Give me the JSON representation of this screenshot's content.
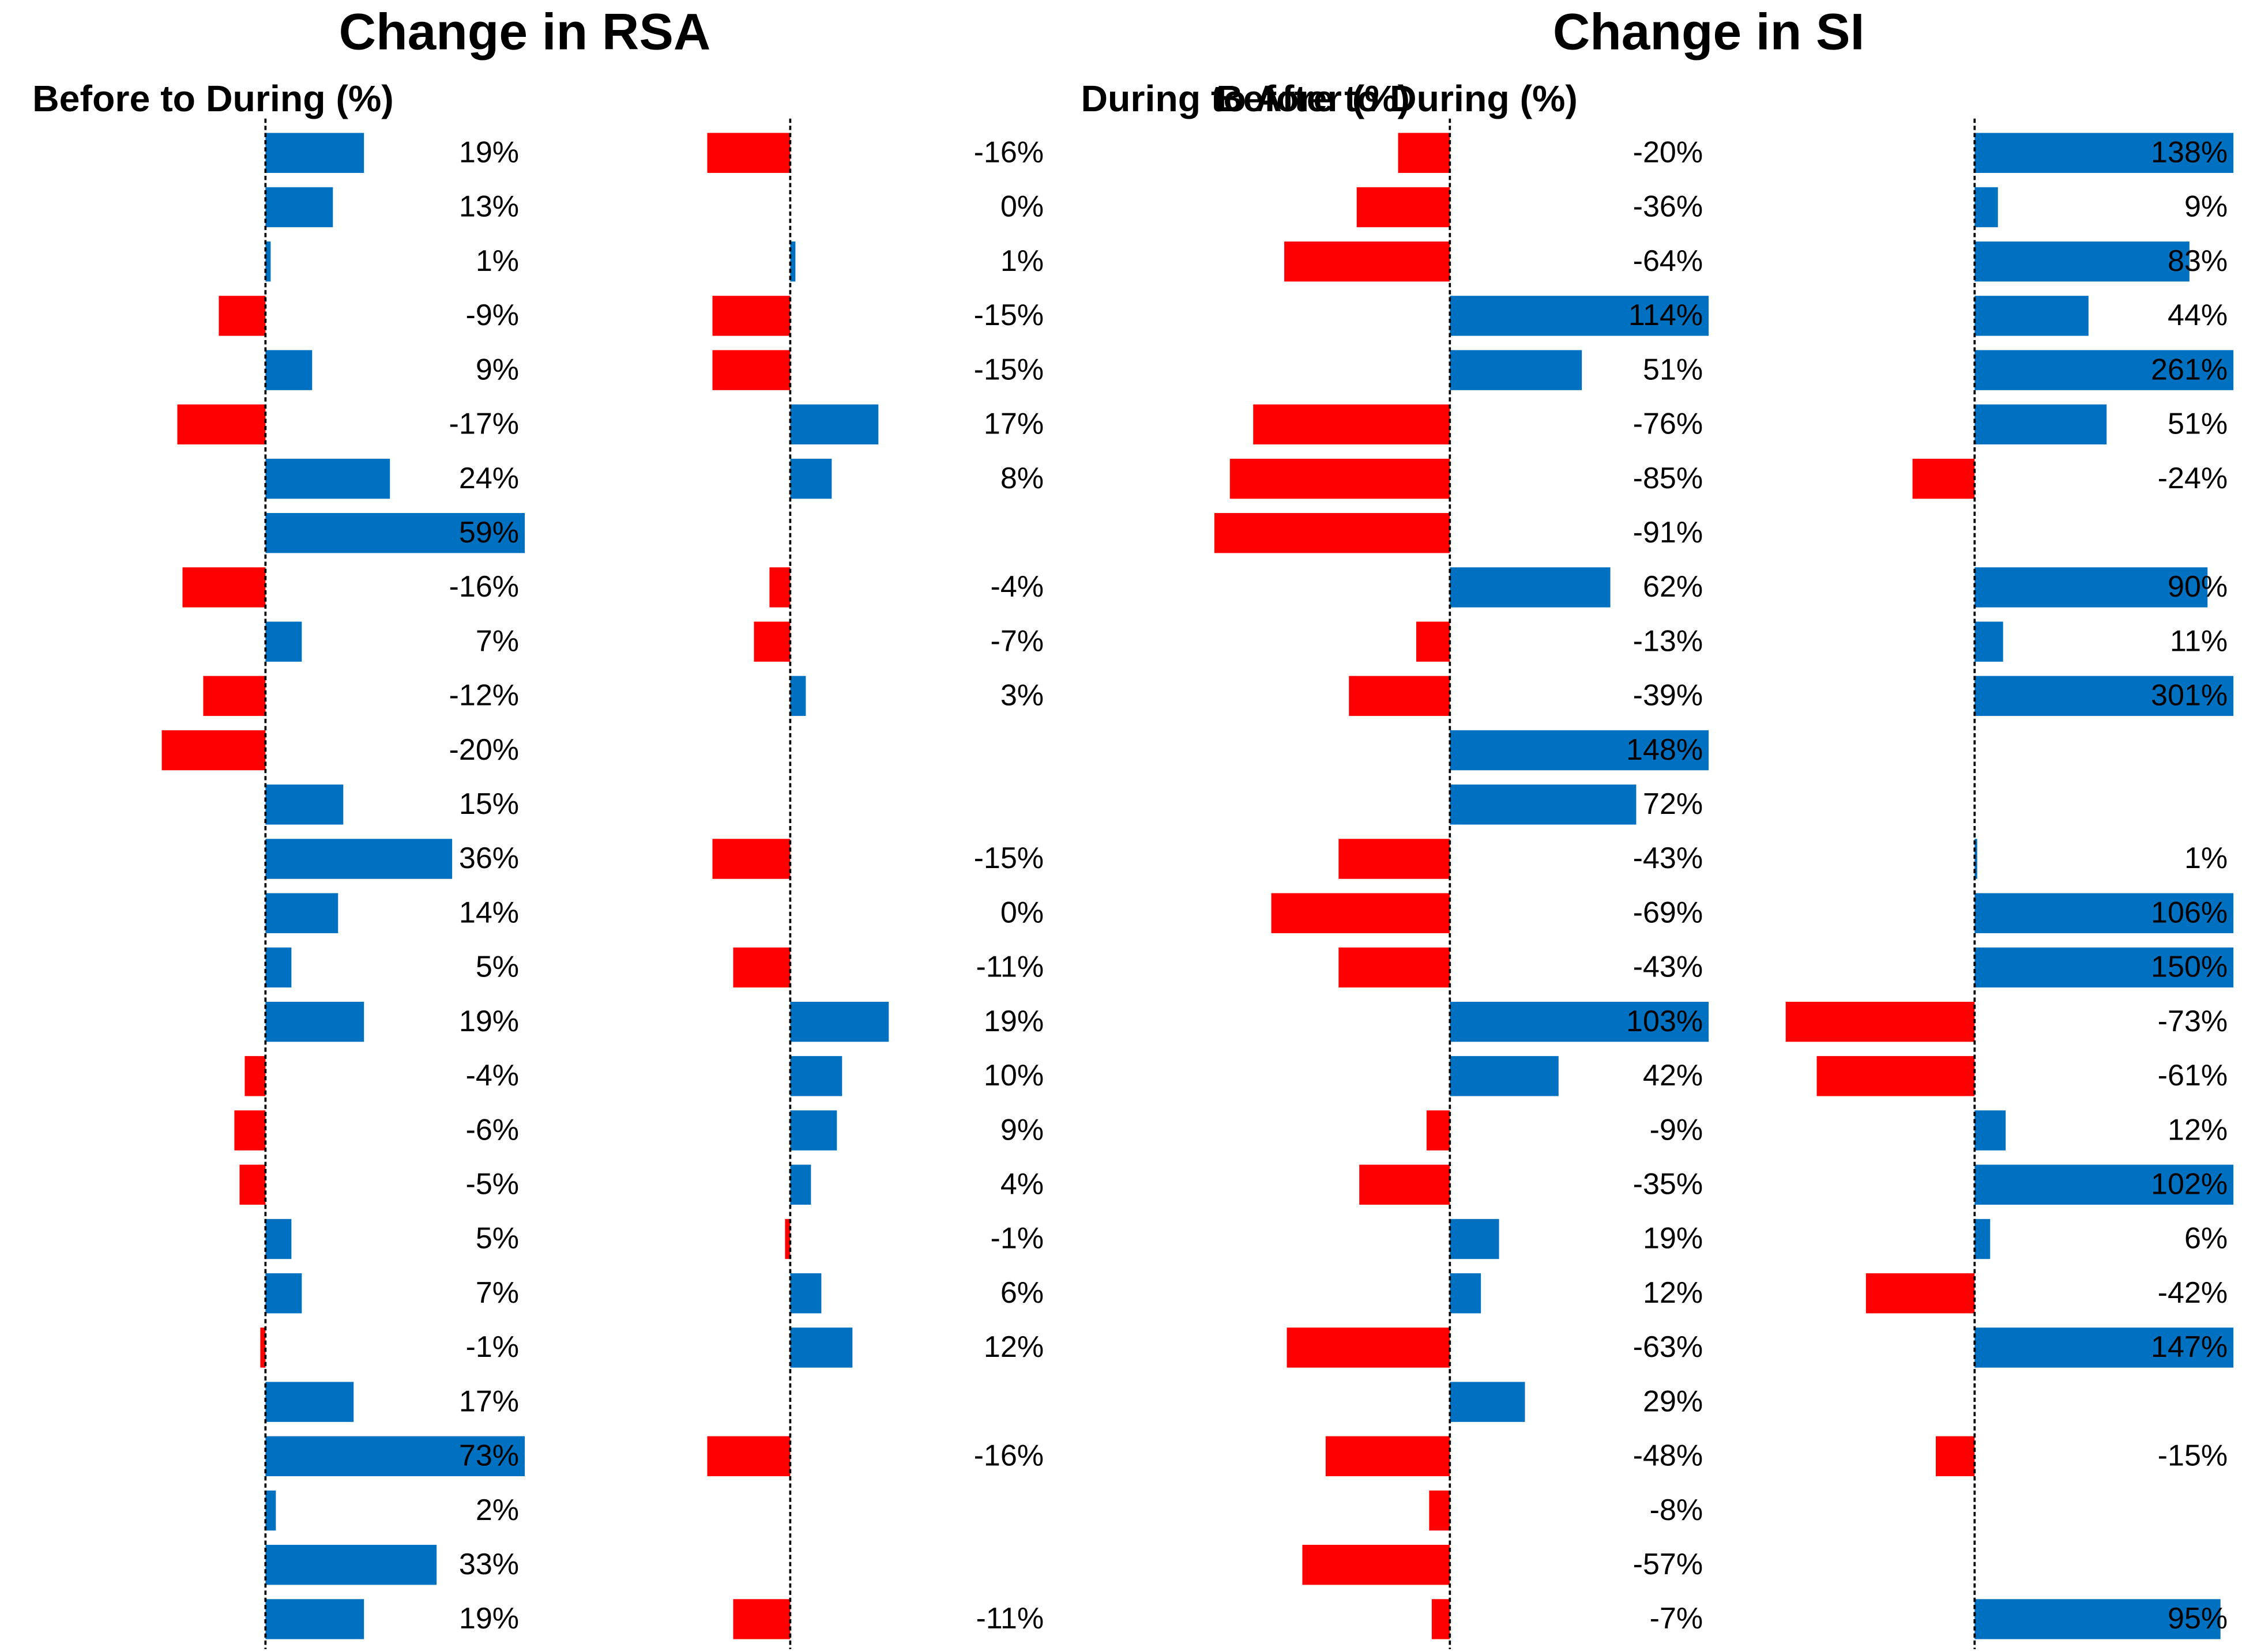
{
  "chart_data": [
    {
      "type": "bar",
      "orientation": "horizontal",
      "title": "Change in RSA",
      "positive_color": "#0070c0",
      "negative_color": "#ff0000",
      "xlim": [
        -25,
        50
      ],
      "series": [
        {
          "name": "Before to During (%)",
          "values": [
            19,
            13,
            1,
            -9,
            9,
            -17,
            24,
            59,
            -16,
            7,
            -12,
            -20,
            15,
            36,
            14,
            5,
            19,
            -4,
            -6,
            -5,
            5,
            7,
            -1,
            17,
            73,
            2,
            33,
            19
          ],
          "value_labels": [
            "19%",
            "13%",
            "1%",
            "-9%",
            "9%",
            "-17%",
            "24%",
            "59%",
            "-16%",
            "7%",
            "-12%",
            "-20%",
            "15%",
            "36%",
            "14%",
            "5%",
            "19%",
            "-4%",
            "-6%",
            "-5%",
            "5%",
            "7%",
            "-1%",
            "17%",
            "73%",
            "2%",
            "33%",
            "19%"
          ]
        },
        {
          "name": "During to After (%)",
          "values": [
            -16,
            0,
            1,
            -15,
            -15,
            17,
            8,
            null,
            -4,
            -7,
            3,
            null,
            null,
            -15,
            0,
            -11,
            19,
            10,
            9,
            4,
            -1,
            6,
            12,
            null,
            -16,
            null,
            null,
            -11
          ],
          "value_labels": [
            "-16%",
            "0%",
            "1%",
            "-15%",
            "-15%",
            "17%",
            "8%",
            null,
            "-4%",
            "-7%",
            "3%",
            null,
            null,
            "-15%",
            "0%",
            "-11%",
            "19%",
            "10%",
            "9%",
            "4%",
            "-1%",
            "6%",
            "12%",
            null,
            "-16%",
            null,
            null,
            "-11%"
          ]
        }
      ]
    },
    {
      "type": "bar",
      "orientation": "horizontal",
      "title": "Change in SI",
      "positive_color": "#0070c0",
      "negative_color": "#ff0000",
      "xlim": [
        -100,
        100
      ],
      "series": [
        {
          "name": "Before to During (%)",
          "values": [
            -20,
            -36,
            -64,
            114,
            51,
            -76,
            -85,
            -91,
            62,
            -13,
            -39,
            148,
            72,
            -43,
            -69,
            -43,
            103,
            42,
            -9,
            -35,
            19,
            12,
            -63,
            29,
            -48,
            -8,
            -57,
            -7
          ],
          "value_labels": [
            "-20%",
            "-36%",
            "-64%",
            "114%",
            "51%",
            "-76%",
            "-85%",
            "-91%",
            "62%",
            "-13%",
            "-39%",
            "148%",
            "72%",
            "-43%",
            "-69%",
            "-43%",
            "103%",
            "42%",
            "-9%",
            "-35%",
            "19%",
            "12%",
            "-63%",
            "29%",
            "-48%",
            "-8%",
            "-57%",
            "-7%"
          ]
        },
        {
          "name": "During to After (%)",
          "values": [
            138,
            9,
            83,
            44,
            261,
            51,
            -24,
            null,
            90,
            11,
            301,
            null,
            null,
            1,
            106,
            150,
            -73,
            -61,
            12,
            102,
            6,
            -42,
            147,
            null,
            -15,
            null,
            null,
            95
          ],
          "value_labels": [
            "138%",
            "9%",
            "83%",
            "44%",
            "261%",
            "51%",
            "-24%",
            null,
            "90%",
            "11%",
            "301%",
            null,
            null,
            "1%",
            "106%",
            "150%",
            "-73%",
            "-61%",
            "12%",
            "102%",
            "6%",
            "-42%",
            "147%",
            null,
            "-15%",
            null,
            null,
            "95%"
          ]
        }
      ]
    }
  ]
}
